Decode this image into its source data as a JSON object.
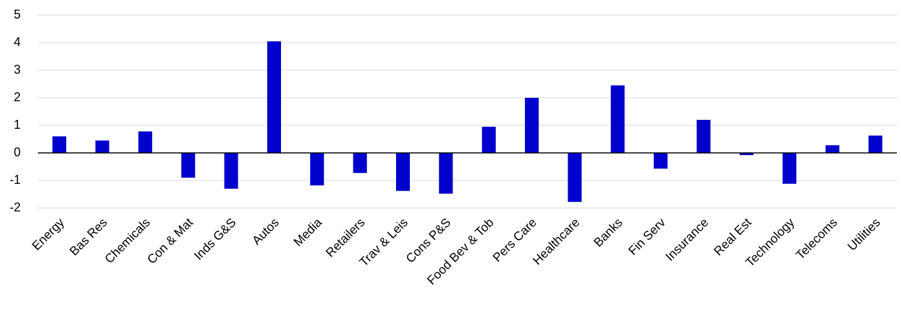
{
  "chart_data": {
    "type": "bar",
    "categories": [
      "Energy",
      "Bas Res",
      "Chemicals",
      "Con & Mat",
      "Inds G&S",
      "Autos",
      "Media",
      "Retailers",
      "Trav & Leis",
      "Cons P&S",
      "Food Bev & Tob",
      "Pers Care",
      "Healthcare",
      "Banks",
      "Fin Serv",
      "Insurance",
      "Real Est",
      "Technology",
      "Telecoms",
      "Utilities"
    ],
    "values": [
      0.6,
      0.45,
      0.78,
      -0.9,
      -1.3,
      4.05,
      -1.18,
      -0.73,
      -1.38,
      -1.48,
      0.95,
      2.0,
      -1.78,
      2.45,
      -0.57,
      1.2,
      -0.08,
      -1.12,
      0.28,
      0.63
    ],
    "color": "#0000cc",
    "ylim": [
      -2,
      5
    ],
    "yticks": [
      -2,
      -1,
      0,
      1,
      2,
      3,
      4,
      5
    ],
    "grid": true
  }
}
